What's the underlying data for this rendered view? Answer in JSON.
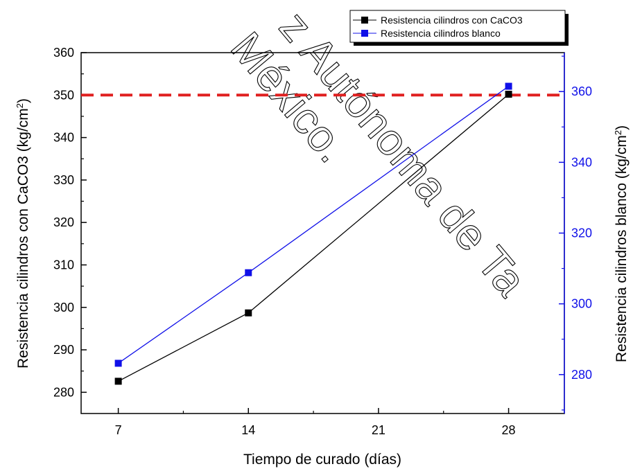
{
  "chart_data": {
    "type": "line",
    "x": [
      7,
      14,
      28
    ],
    "xlabel": "Tiempo de curado (días)",
    "xticks": [
      "7",
      "14",
      "21",
      "28"
    ],
    "xlim": [
      5,
      31
    ],
    "series": [
      {
        "name": "Resistencia cilindros con CaCO3",
        "axis": "left",
        "color": "#000000",
        "marker": "square",
        "values": [
          282.6,
          298.7,
          350.2
        ]
      },
      {
        "name": "Resistencia cilindros blanco",
        "axis": "right",
        "color": "#1010e8",
        "marker": "square",
        "values": [
          283.2,
          308.8,
          361.5
        ]
      }
    ],
    "y_left": {
      "label_main": "Resistencia cilindros con CaCO3 (kg/cm",
      "label_sup": "2",
      "label_end": ")",
      "lim": [
        275,
        360
      ],
      "ticks": [
        "280",
        "290",
        "300",
        "310",
        "320",
        "330",
        "340",
        "350",
        "360"
      ]
    },
    "y_right": {
      "label_main": "Resistencia cilindros blanco (kg/cm",
      "label_sup": "2",
      "label_end": ")",
      "lim": [
        269,
        371
      ],
      "ticks": [
        "280",
        "300",
        "320",
        "340",
        "360"
      ],
      "color": "#1010e8"
    },
    "reference_line": {
      "y": 350,
      "axis": "left",
      "color": "#e02020",
      "style": "dashed"
    },
    "legend": {
      "placement": "top-right",
      "entries": [
        "Resistencia cilindros con CaCO3",
        "Resistencia cilindros blanco"
      ]
    },
    "grid": false
  },
  "watermark": [
    "z Autónoma de Ta",
    "México."
  ]
}
